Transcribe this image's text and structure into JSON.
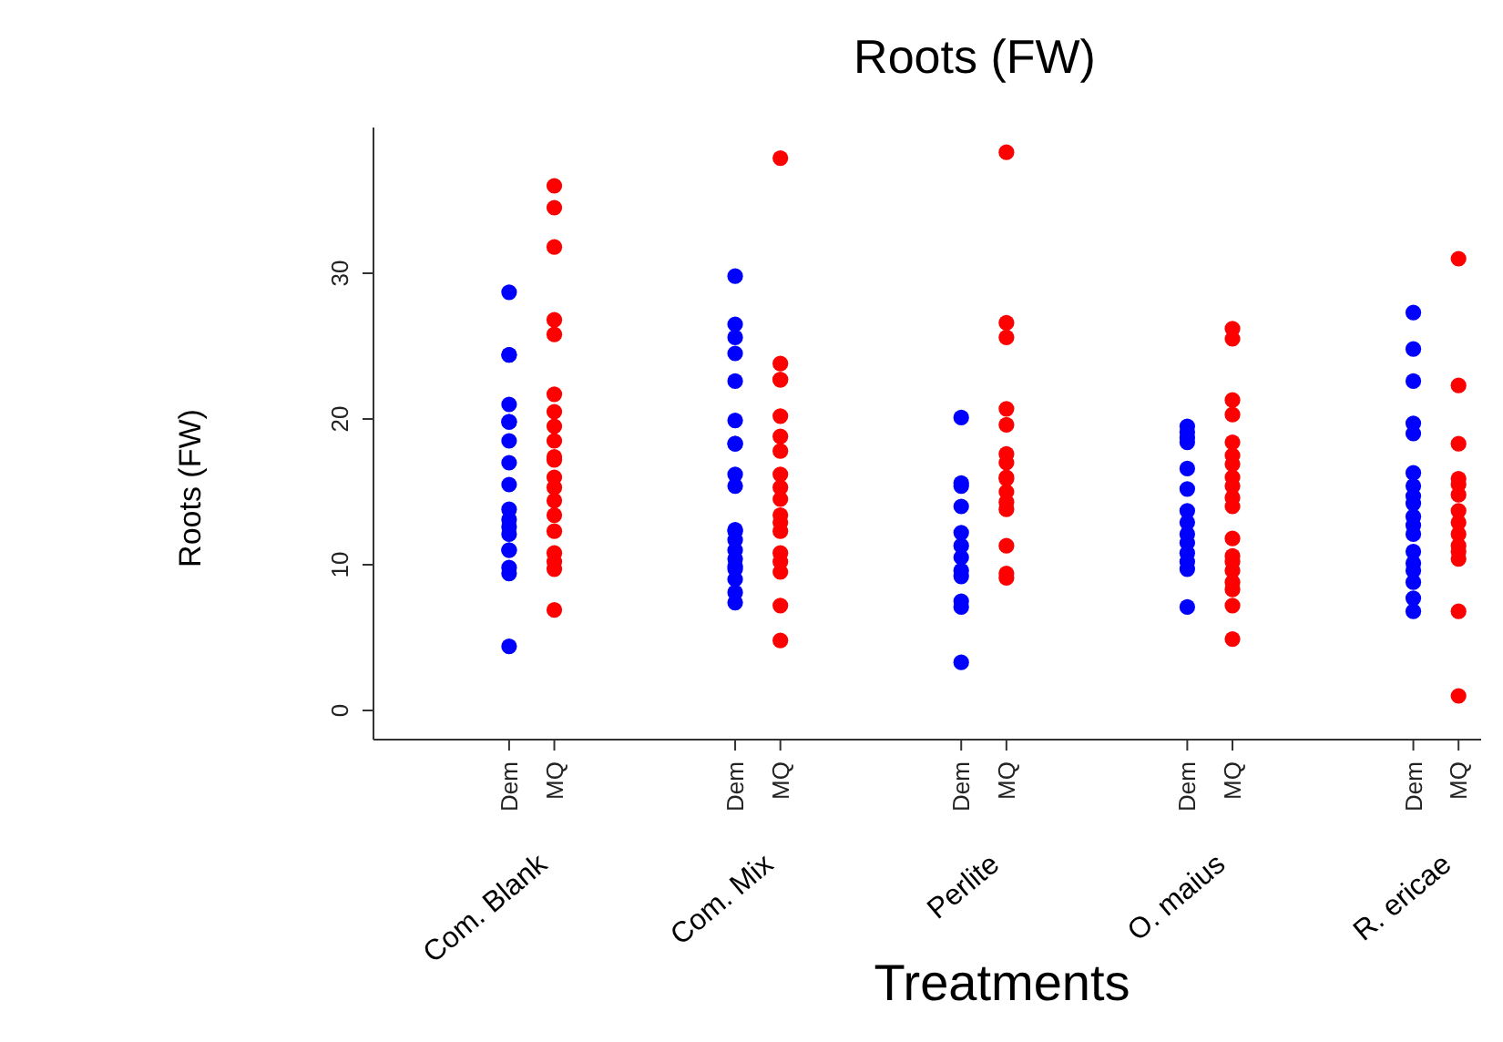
{
  "chart_data": {
    "type": "scatter",
    "title": "Roots (FW)",
    "xlabel": "Treatments",
    "ylabel": "Roots (FW)",
    "categories": [
      "Com. Blank",
      "Com. Mix",
      "Perlite",
      "O. maius",
      "R. ericae"
    ],
    "ylim": [
      -2,
      40
    ],
    "yticks": [
      0,
      10,
      20,
      30
    ],
    "marker": "circle",
    "legend": false,
    "series": [
      {
        "name": "Dem",
        "color": "#0000ff",
        "x": [
          "Com. Blank",
          "Com. Blank",
          "Com. Blank",
          "Com. Blank",
          "Com. Blank",
          "Com. Blank",
          "Com. Blank",
          "Com. Blank",
          "Com. Blank",
          "Com. Blank",
          "Com. Blank",
          "Com. Blank",
          "Com. Blank",
          "Com. Blank",
          "Com. Blank",
          "Com. Blank",
          "Com. Blank",
          "Com. Blank",
          "Com. Mix",
          "Com. Mix",
          "Com. Mix",
          "Com. Mix",
          "Com. Mix",
          "Com. Mix",
          "Com. Mix",
          "Com. Mix",
          "Com. Mix",
          "Com. Mix",
          "Com. Mix",
          "Com. Mix",
          "Com. Mix",
          "Com. Mix",
          "Com. Mix",
          "Com. Mix",
          "Com. Mix",
          "Com. Mix",
          "Com. Mix",
          "Com. Mix",
          "Perlite",
          "Perlite",
          "Perlite",
          "Perlite",
          "Perlite",
          "Perlite",
          "Perlite",
          "Perlite",
          "Perlite",
          "Perlite",
          "Perlite",
          "Perlite",
          "O. maius",
          "O. maius",
          "O. maius",
          "O. maius",
          "O. maius",
          "O. maius",
          "O. maius",
          "O. maius",
          "O. maius",
          "O. maius",
          "O. maius",
          "O. maius",
          "O. maius",
          "O. maius",
          "R. ericae",
          "R. ericae",
          "R. ericae",
          "R. ericae",
          "R. ericae",
          "R. ericae",
          "R. ericae",
          "R. ericae",
          "R. ericae",
          "R. ericae",
          "R. ericae",
          "R. ericae",
          "R. ericae",
          "R. ericae",
          "R. ericae",
          "R. ericae",
          "R. ericae",
          "R. ericae"
        ],
        "values": [
          28.7,
          24.4,
          24.4,
          21.0,
          19.8,
          19.8,
          18.5,
          17.0,
          15.5,
          13.8,
          13.1,
          12.6,
          12.1,
          11.0,
          11.0,
          9.8,
          9.4,
          4.4,
          29.8,
          26.5,
          25.6,
          24.5,
          22.6,
          19.9,
          18.3,
          18.3,
          16.2,
          15.4,
          12.4,
          12.3,
          11.7,
          11.0,
          10.4,
          9.9,
          9.7,
          9.0,
          8.1,
          7.4,
          20.1,
          15.6,
          15.4,
          14.0,
          12.2,
          11.3,
          10.5,
          9.6,
          9.2,
          7.5,
          7.1,
          3.3,
          19.5,
          19.1,
          18.7,
          18.4,
          16.6,
          15.2,
          13.7,
          12.9,
          12.1,
          11.5,
          10.8,
          10.2,
          9.7,
          7.1,
          27.3,
          24.8,
          22.6,
          19.7,
          19.0,
          16.3,
          15.4,
          14.7,
          14.2,
          13.3,
          12.7,
          12.1,
          10.9,
          10.1,
          9.6,
          8.8,
          7.7,
          6.8
        ]
      },
      {
        "name": "MQ",
        "color": "#ff0000",
        "x": [
          "Com. Blank",
          "Com. Blank",
          "Com. Blank",
          "Com. Blank",
          "Com. Blank",
          "Com. Blank",
          "Com. Blank",
          "Com. Blank",
          "Com. Blank",
          "Com. Blank",
          "Com. Blank",
          "Com. Blank",
          "Com. Blank",
          "Com. Blank",
          "Com. Blank",
          "Com. Blank",
          "Com. Blank",
          "Com. Blank",
          "Com. Blank",
          "Com. Blank",
          "Com. Mix",
          "Com. Mix",
          "Com. Mix",
          "Com. Mix",
          "Com. Mix",
          "Com. Mix",
          "Com. Mix",
          "Com. Mix",
          "Com. Mix",
          "Com. Mix",
          "Com. Mix",
          "Com. Mix",
          "Com. Mix",
          "Com. Mix",
          "Com. Mix",
          "Com. Mix",
          "Com. Mix",
          "Com. Mix",
          "Perlite",
          "Perlite",
          "Perlite",
          "Perlite",
          "Perlite",
          "Perlite",
          "Perlite",
          "Perlite",
          "Perlite",
          "Perlite",
          "Perlite",
          "Perlite",
          "Perlite",
          "Perlite",
          "Perlite",
          "O. maius",
          "O. maius",
          "O. maius",
          "O. maius",
          "O. maius",
          "O. maius",
          "O. maius",
          "O. maius",
          "O. maius",
          "O. maius",
          "O. maius",
          "O. maius",
          "O. maius",
          "O. maius",
          "O. maius",
          "O. maius",
          "O. maius",
          "O. maius",
          "O. maius",
          "R. ericae",
          "R. ericae",
          "R. ericae",
          "R. ericae",
          "R. ericae",
          "R. ericae",
          "R. ericae",
          "R. ericae",
          "R. ericae",
          "R. ericae",
          "R. ericae",
          "R. ericae",
          "R. ericae",
          "R. ericae"
        ],
        "values": [
          36.0,
          34.5,
          31.8,
          26.8,
          25.8,
          21.7,
          20.5,
          19.5,
          18.5,
          17.4,
          17.2,
          16.0,
          15.3,
          14.4,
          13.4,
          12.3,
          10.8,
          10.2,
          9.7,
          6.9,
          37.9,
          23.8,
          22.7,
          22.7,
          20.2,
          18.8,
          17.8,
          16.2,
          15.3,
          14.5,
          13.4,
          12.9,
          12.3,
          10.8,
          10.2,
          9.5,
          7.2,
          4.8,
          38.3,
          26.6,
          25.6,
          20.7,
          19.6,
          17.6,
          17.0,
          16.0,
          15.9,
          15.0,
          14.3,
          13.8,
          11.3,
          9.4,
          9.1,
          26.2,
          25.5,
          21.3,
          20.3,
          18.4,
          17.5,
          16.9,
          16.0,
          15.4,
          14.6,
          14.0,
          11.8,
          10.6,
          10.2,
          9.6,
          8.8,
          8.3,
          7.2,
          4.9,
          31.0,
          22.3,
          18.3,
          15.9,
          15.5,
          14.8,
          13.7,
          12.9,
          12.1,
          11.3,
          10.9,
          10.4,
          6.8,
          1.0
        ]
      }
    ]
  }
}
